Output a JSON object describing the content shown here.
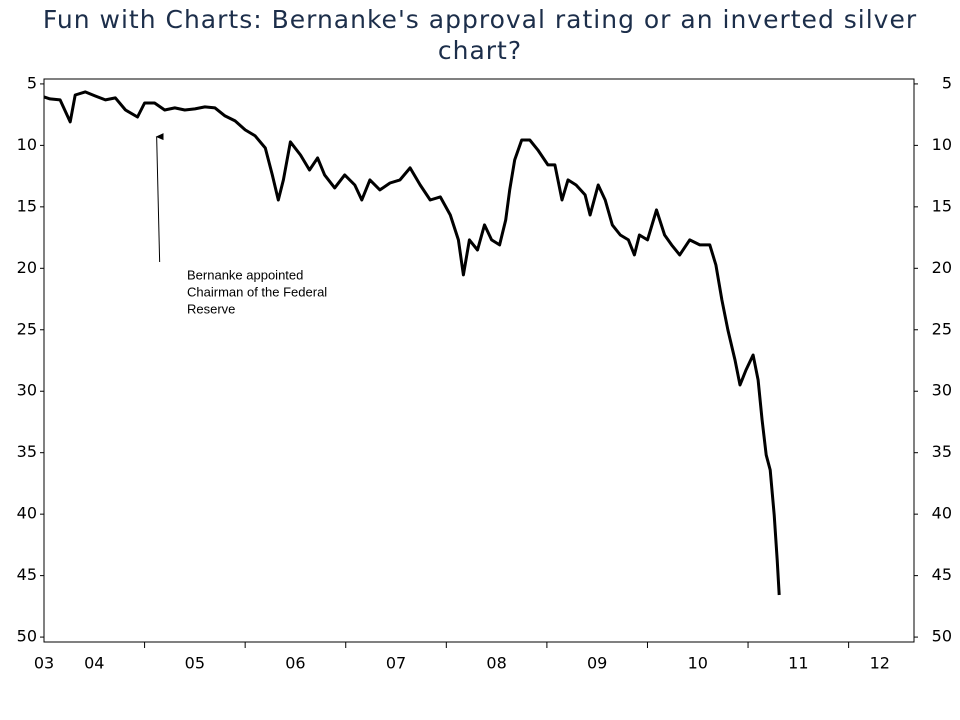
{
  "chart_data": {
    "type": "line",
    "title": "Fun with Charts: Bernanke's approval rating or an inverted silver chart?",
    "xlim": [
      4.0,
      12.65
    ],
    "xticks": [
      {
        "value": 4.0,
        "label": "03"
      },
      {
        "value": 4.5,
        "label": "04"
      },
      {
        "value": 5.5,
        "label": "05"
      },
      {
        "value": 6.5,
        "label": "06"
      },
      {
        "value": 7.5,
        "label": "07"
      },
      {
        "value": 8.5,
        "label": "08"
      },
      {
        "value": 9.5,
        "label": "09"
      },
      {
        "value": 10.5,
        "label": "10"
      },
      {
        "value": 11.5,
        "label": "11"
      },
      {
        "value": 12.31,
        "label": "12"
      }
    ],
    "xtick_marks": [
      5,
      6,
      7,
      8,
      9,
      10,
      11,
      12
    ],
    "ylim": [
      4.6,
      50.4
    ],
    "y_inverted": true,
    "yticks": [
      5,
      10,
      15,
      20,
      25,
      30,
      35,
      40,
      45,
      50
    ],
    "right_axis": true,
    "series": [
      {
        "color": "#000000",
        "x": [
          4.0,
          4.06,
          4.16,
          4.26,
          4.31,
          4.41,
          4.51,
          4.61,
          4.71,
          4.81,
          4.93,
          5.0,
          5.1,
          5.2,
          5.3,
          5.4,
          5.5,
          5.6,
          5.7,
          5.8,
          5.9,
          6.0,
          6.1,
          6.2,
          6.27,
          6.33,
          6.38,
          6.45,
          6.55,
          6.64,
          6.72,
          6.79,
          6.89,
          6.99,
          7.09,
          7.16,
          7.24,
          7.34,
          7.44,
          7.54,
          7.64,
          7.74,
          7.84,
          7.94,
          8.04,
          8.12,
          8.17,
          8.23,
          8.31,
          8.38,
          8.45,
          8.53,
          8.59,
          8.63,
          8.68,
          8.75,
          8.83,
          8.91,
          9.01,
          9.08,
          9.15,
          9.21,
          9.29,
          9.38,
          9.43,
          9.51,
          9.58,
          9.65,
          9.73,
          9.81,
          9.87,
          9.92,
          10.0,
          10.09,
          10.17,
          10.24,
          10.32,
          10.42,
          10.52,
          10.62,
          10.68,
          10.74,
          10.8,
          10.87,
          10.92,
          10.98,
          11.05,
          11.1,
          11.14,
          11.18,
          11.22,
          11.26,
          11.29,
          11.31
        ],
        "values": [
          6.06,
          6.22,
          6.3,
          8.09,
          5.9,
          5.65,
          5.98,
          6.3,
          6.14,
          7.12,
          7.69,
          6.55,
          6.55,
          7.12,
          6.95,
          7.12,
          7.03,
          6.87,
          6.95,
          7.6,
          8.01,
          8.74,
          9.23,
          10.21,
          12.4,
          14.44,
          12.81,
          9.72,
          10.78,
          12.0,
          11.02,
          12.4,
          13.46,
          12.4,
          13.22,
          14.44,
          12.81,
          13.62,
          13.06,
          12.81,
          11.83,
          13.22,
          14.44,
          14.19,
          15.66,
          17.69,
          20.54,
          17.69,
          18.51,
          16.47,
          17.69,
          18.1,
          16.07,
          13.62,
          11.18,
          9.56,
          9.56,
          10.37,
          11.59,
          11.59,
          14.44,
          12.81,
          13.22,
          14.03,
          15.66,
          13.22,
          14.44,
          16.47,
          17.29,
          17.69,
          18.91,
          17.29,
          17.69,
          15.25,
          17.29,
          18.1,
          18.91,
          17.69,
          18.1,
          18.1,
          19.73,
          22.58,
          25.02,
          27.46,
          29.49,
          28.27,
          27.05,
          29.08,
          32.34,
          35.19,
          36.41,
          40.07,
          43.73,
          46.58
        ]
      }
    ],
    "annotation": {
      "lines": [
        "Bernanke appointed",
        "Chairman of the Federal",
        "Reserve"
      ],
      "x": 5.12,
      "y": 9.3
    }
  }
}
